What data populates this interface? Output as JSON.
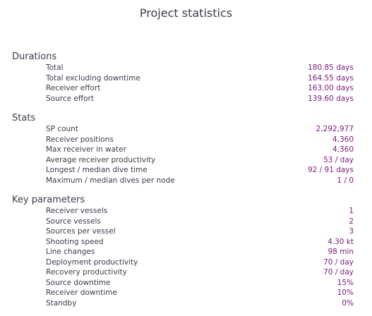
{
  "title": "Project statistics",
  "sections": [
    {
      "heading": "Durations",
      "rows": [
        {
          "label": "Total",
          "value": "180.85 days"
        },
        {
          "label": "Total excluding downtime",
          "value": "164.55 days"
        },
        {
          "label": "Receiver effort",
          "value": "163.00 days"
        },
        {
          "label": "Source effort",
          "value": "139.60 days"
        }
      ]
    },
    {
      "heading": "Stats",
      "rows": [
        {
          "label": "SP count",
          "value": "2,292,977"
        },
        {
          "label": "Receiver positions",
          "value": "4,360"
        },
        {
          "label": "Max receiver in water",
          "value": "4,360"
        },
        {
          "label": "Average receiver productivity",
          "value": "53 / day"
        },
        {
          "label": "Longest / median dive time",
          "value": "92 / 91 days"
        },
        {
          "label": "Maximum / median dives per node",
          "value": "1 / 0"
        }
      ]
    },
    {
      "heading": "Key parameters",
      "rows": [
        {
          "label": "Receiver vessels",
          "value": "1"
        },
        {
          "label": "Source vessels",
          "value": "2"
        },
        {
          "label": "Sources per vessel",
          "value": "3"
        },
        {
          "label": "Shooting speed",
          "value": "4.30 kt"
        },
        {
          "label": "Line changes",
          "value": "98 min"
        },
        {
          "label": "Deployment productivity",
          "value": "70 / day"
        },
        {
          "label": "Recovery productivity",
          "value": "70 / day"
        },
        {
          "label": "Source downtime",
          "value": "15%"
        },
        {
          "label": "Receiver downtime",
          "value": "10%"
        },
        {
          "label": "Standby",
          "value": "0%"
        }
      ]
    }
  ]
}
